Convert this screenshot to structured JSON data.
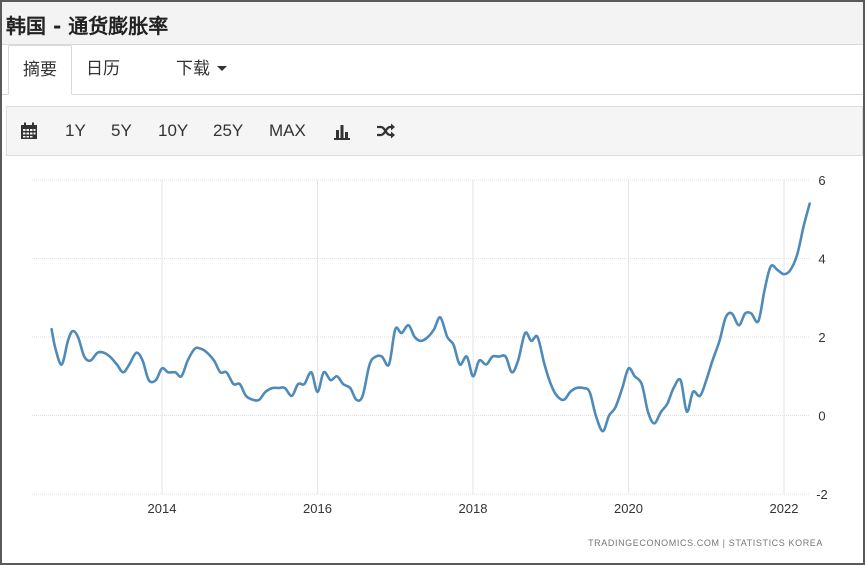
{
  "header": {
    "title": "韩国 - 通货膨胀率"
  },
  "tabs": [
    {
      "label": "摘要",
      "active": true
    },
    {
      "label": "日历",
      "active": false
    },
    {
      "label": "下载",
      "active": false,
      "dropdown": true
    }
  ],
  "toolbar": {
    "calendar_icon": "calendar-icon",
    "ranges": [
      "1Y",
      "5Y",
      "10Y",
      "25Y",
      "MAX"
    ],
    "chart_type_icon": "bar-chart-icon",
    "compare_icon": "shuffle-icon"
  },
  "footer": {
    "source": "TRADINGECONOMICS.COM | STATISTICS KOREA"
  },
  "chart_data": {
    "type": "line",
    "title": "",
    "xlabel": "",
    "ylabel": "",
    "x_ticks": [
      "2014",
      "2016",
      "2018",
      "2020",
      "2022"
    ],
    "y_ticks": [
      6,
      4,
      2,
      0,
      -2
    ],
    "ylim": [
      -2,
      6
    ],
    "xlim": [
      2012.5,
      2022.4
    ],
    "grid": true,
    "y_axis_side": "right",
    "line_color": "#4f8ab8",
    "series": [
      {
        "name": "",
        "points": [
          [
            2012.58,
            2.2
          ],
          [
            2012.63,
            1.7
          ],
          [
            2012.71,
            1.3
          ],
          [
            2012.79,
            1.9
          ],
          [
            2012.85,
            2.15
          ],
          [
            2012.92,
            2.0
          ],
          [
            2013.0,
            1.5
          ],
          [
            2013.08,
            1.4
          ],
          [
            2013.17,
            1.6
          ],
          [
            2013.25,
            1.6
          ],
          [
            2013.33,
            1.5
          ],
          [
            2013.42,
            1.3
          ],
          [
            2013.5,
            1.1
          ],
          [
            2013.58,
            1.3
          ],
          [
            2013.67,
            1.6
          ],
          [
            2013.75,
            1.4
          ],
          [
            2013.83,
            0.9
          ],
          [
            2013.92,
            0.9
          ],
          [
            2014.0,
            1.2
          ],
          [
            2014.08,
            1.1
          ],
          [
            2014.17,
            1.1
          ],
          [
            2014.25,
            1.0
          ],
          [
            2014.33,
            1.4
          ],
          [
            2014.42,
            1.7
          ],
          [
            2014.5,
            1.7
          ],
          [
            2014.58,
            1.6
          ],
          [
            2014.67,
            1.4
          ],
          [
            2014.75,
            1.1
          ],
          [
            2014.83,
            1.1
          ],
          [
            2014.92,
            0.8
          ],
          [
            2015.0,
            0.8
          ],
          [
            2015.08,
            0.5
          ],
          [
            2015.17,
            0.4
          ],
          [
            2015.25,
            0.4
          ],
          [
            2015.33,
            0.6
          ],
          [
            2015.42,
            0.7
          ],
          [
            2015.5,
            0.7
          ],
          [
            2015.58,
            0.7
          ],
          [
            2015.67,
            0.5
          ],
          [
            2015.75,
            0.8
          ],
          [
            2015.83,
            0.8
          ],
          [
            2015.92,
            1.1
          ],
          [
            2016.0,
            0.6
          ],
          [
            2016.08,
            1.1
          ],
          [
            2016.17,
            0.9
          ],
          [
            2016.25,
            1.0
          ],
          [
            2016.33,
            0.8
          ],
          [
            2016.42,
            0.7
          ],
          [
            2016.5,
            0.4
          ],
          [
            2016.58,
            0.5
          ],
          [
            2016.67,
            1.3
          ],
          [
            2016.75,
            1.5
          ],
          [
            2016.83,
            1.5
          ],
          [
            2016.92,
            1.3
          ],
          [
            2017.0,
            2.2
          ],
          [
            2017.08,
            2.1
          ],
          [
            2017.17,
            2.3
          ],
          [
            2017.25,
            2.0
          ],
          [
            2017.33,
            1.9
          ],
          [
            2017.42,
            2.0
          ],
          [
            2017.5,
            2.2
          ],
          [
            2017.58,
            2.5
          ],
          [
            2017.67,
            2.0
          ],
          [
            2017.75,
            1.8
          ],
          [
            2017.83,
            1.3
          ],
          [
            2017.92,
            1.5
          ],
          [
            2018.0,
            1.0
          ],
          [
            2018.08,
            1.4
          ],
          [
            2018.17,
            1.3
          ],
          [
            2018.25,
            1.5
          ],
          [
            2018.33,
            1.5
          ],
          [
            2018.42,
            1.5
          ],
          [
            2018.5,
            1.1
          ],
          [
            2018.58,
            1.4
          ],
          [
            2018.67,
            2.1
          ],
          [
            2018.75,
            1.9
          ],
          [
            2018.83,
            2.0
          ],
          [
            2018.92,
            1.3
          ],
          [
            2019.0,
            0.8
          ],
          [
            2019.08,
            0.5
          ],
          [
            2019.17,
            0.4
          ],
          [
            2019.25,
            0.6
          ],
          [
            2019.33,
            0.7
          ],
          [
            2019.42,
            0.7
          ],
          [
            2019.5,
            0.6
          ],
          [
            2019.58,
            0.0
          ],
          [
            2019.67,
            -0.4
          ],
          [
            2019.75,
            0.0
          ],
          [
            2019.83,
            0.2
          ],
          [
            2019.92,
            0.7
          ],
          [
            2020.0,
            1.2
          ],
          [
            2020.08,
            1.0
          ],
          [
            2020.17,
            0.8
          ],
          [
            2020.25,
            0.1
          ],
          [
            2020.33,
            -0.2
          ],
          [
            2020.42,
            0.1
          ],
          [
            2020.5,
            0.3
          ],
          [
            2020.58,
            0.7
          ],
          [
            2020.67,
            0.9
          ],
          [
            2020.75,
            0.1
          ],
          [
            2020.83,
            0.6
          ],
          [
            2020.92,
            0.5
          ],
          [
            2021.0,
            0.9
          ],
          [
            2021.08,
            1.4
          ],
          [
            2021.17,
            1.9
          ],
          [
            2021.25,
            2.5
          ],
          [
            2021.33,
            2.6
          ],
          [
            2021.42,
            2.3
          ],
          [
            2021.5,
            2.6
          ],
          [
            2021.58,
            2.6
          ],
          [
            2021.67,
            2.4
          ],
          [
            2021.75,
            3.2
          ],
          [
            2021.83,
            3.8
          ],
          [
            2021.92,
            3.7
          ],
          [
            2022.0,
            3.6
          ],
          [
            2022.08,
            3.7
          ],
          [
            2022.17,
            4.1
          ],
          [
            2022.25,
            4.8
          ],
          [
            2022.33,
            5.4
          ]
        ]
      }
    ]
  }
}
